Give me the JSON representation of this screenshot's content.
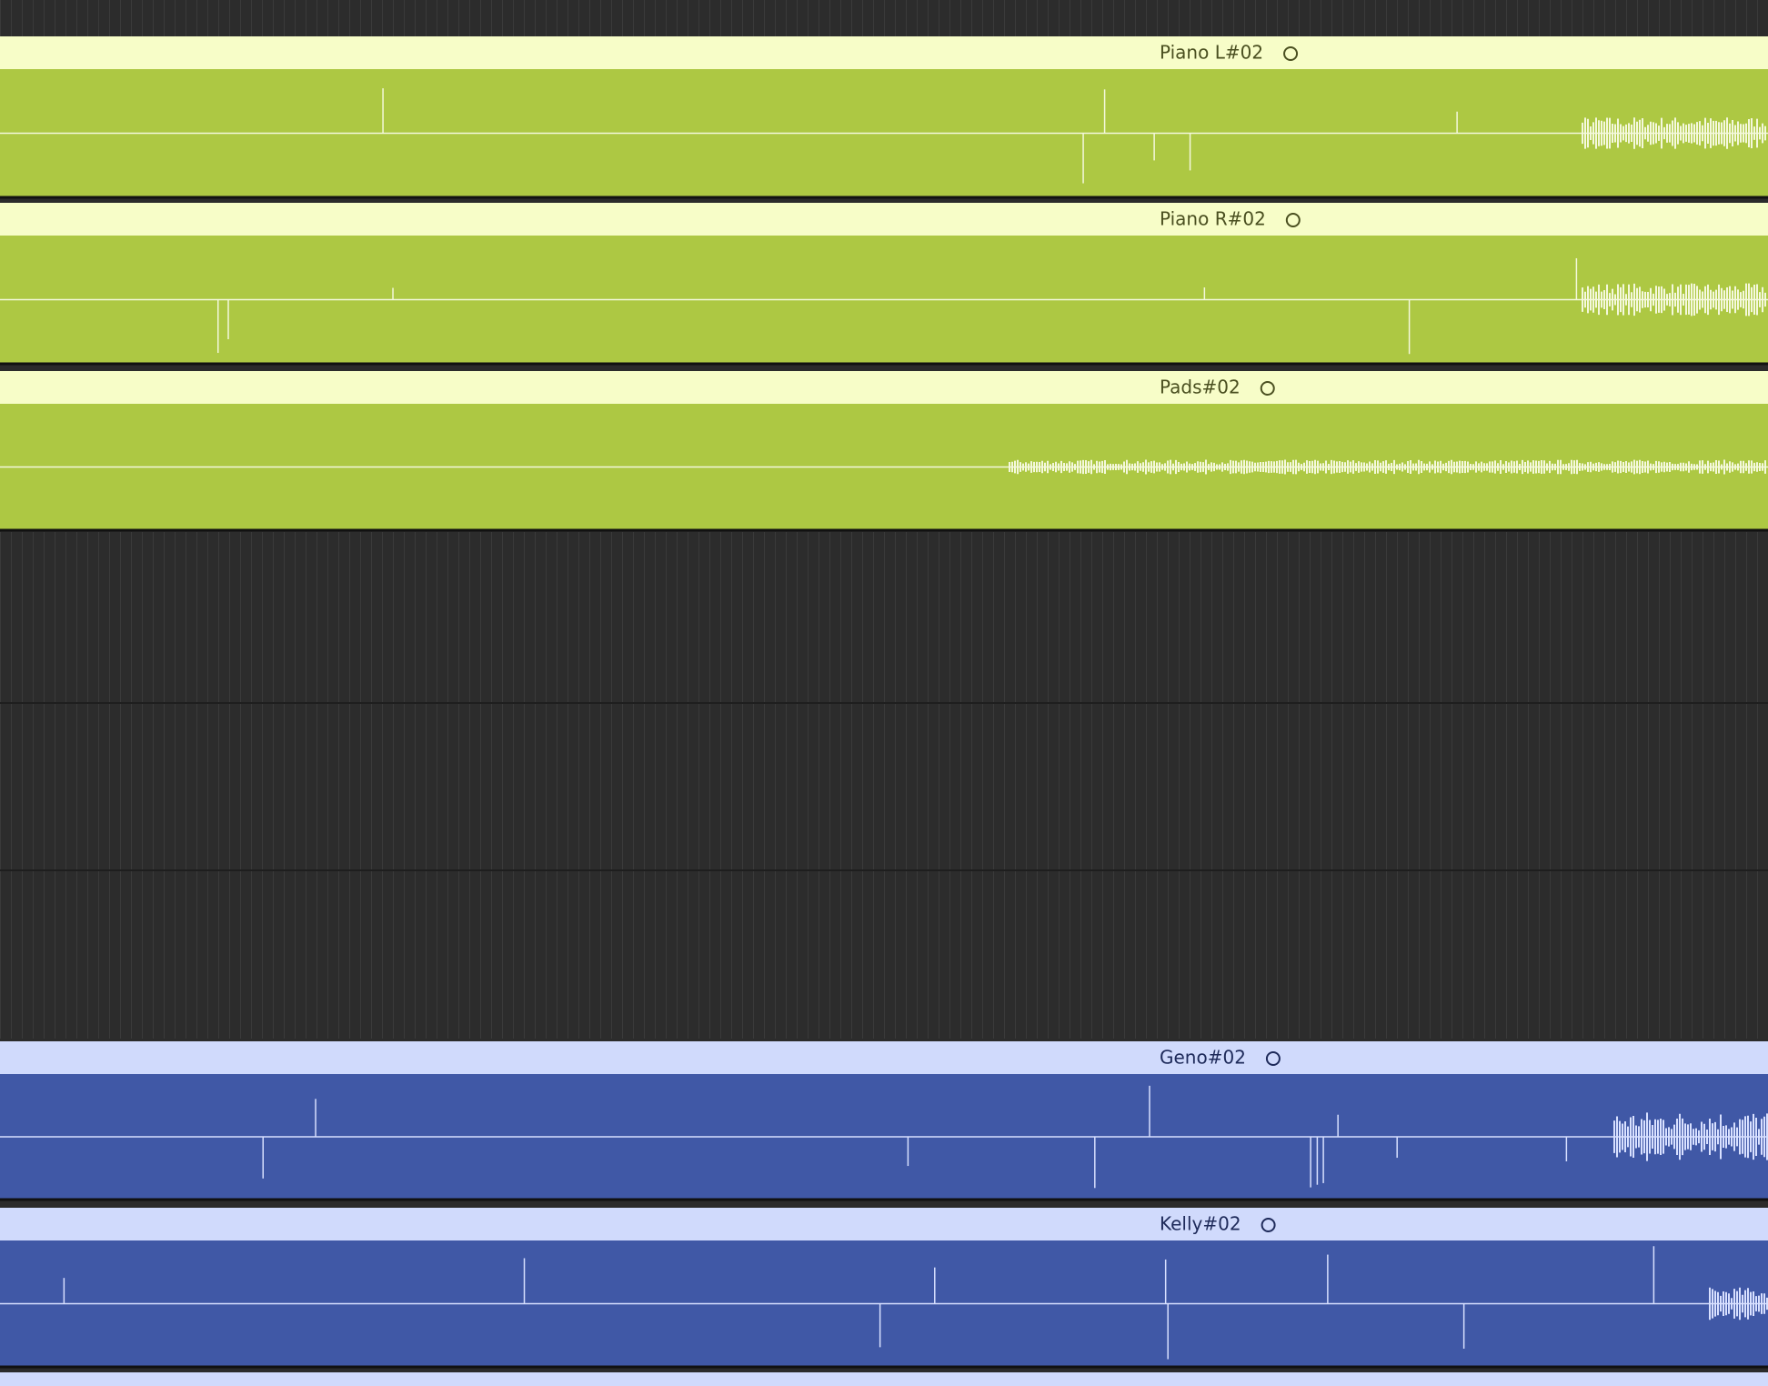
{
  "regions": [
    {
      "name": "Piano L#02",
      "kind": "green"
    },
    {
      "name": "Piano R#02",
      "kind": "green"
    },
    {
      "name": "Pads#02",
      "kind": "green"
    },
    {
      "name": "Geno#02",
      "kind": "blue"
    },
    {
      "name": "Kelly#02",
      "kind": "blue"
    }
  ]
}
